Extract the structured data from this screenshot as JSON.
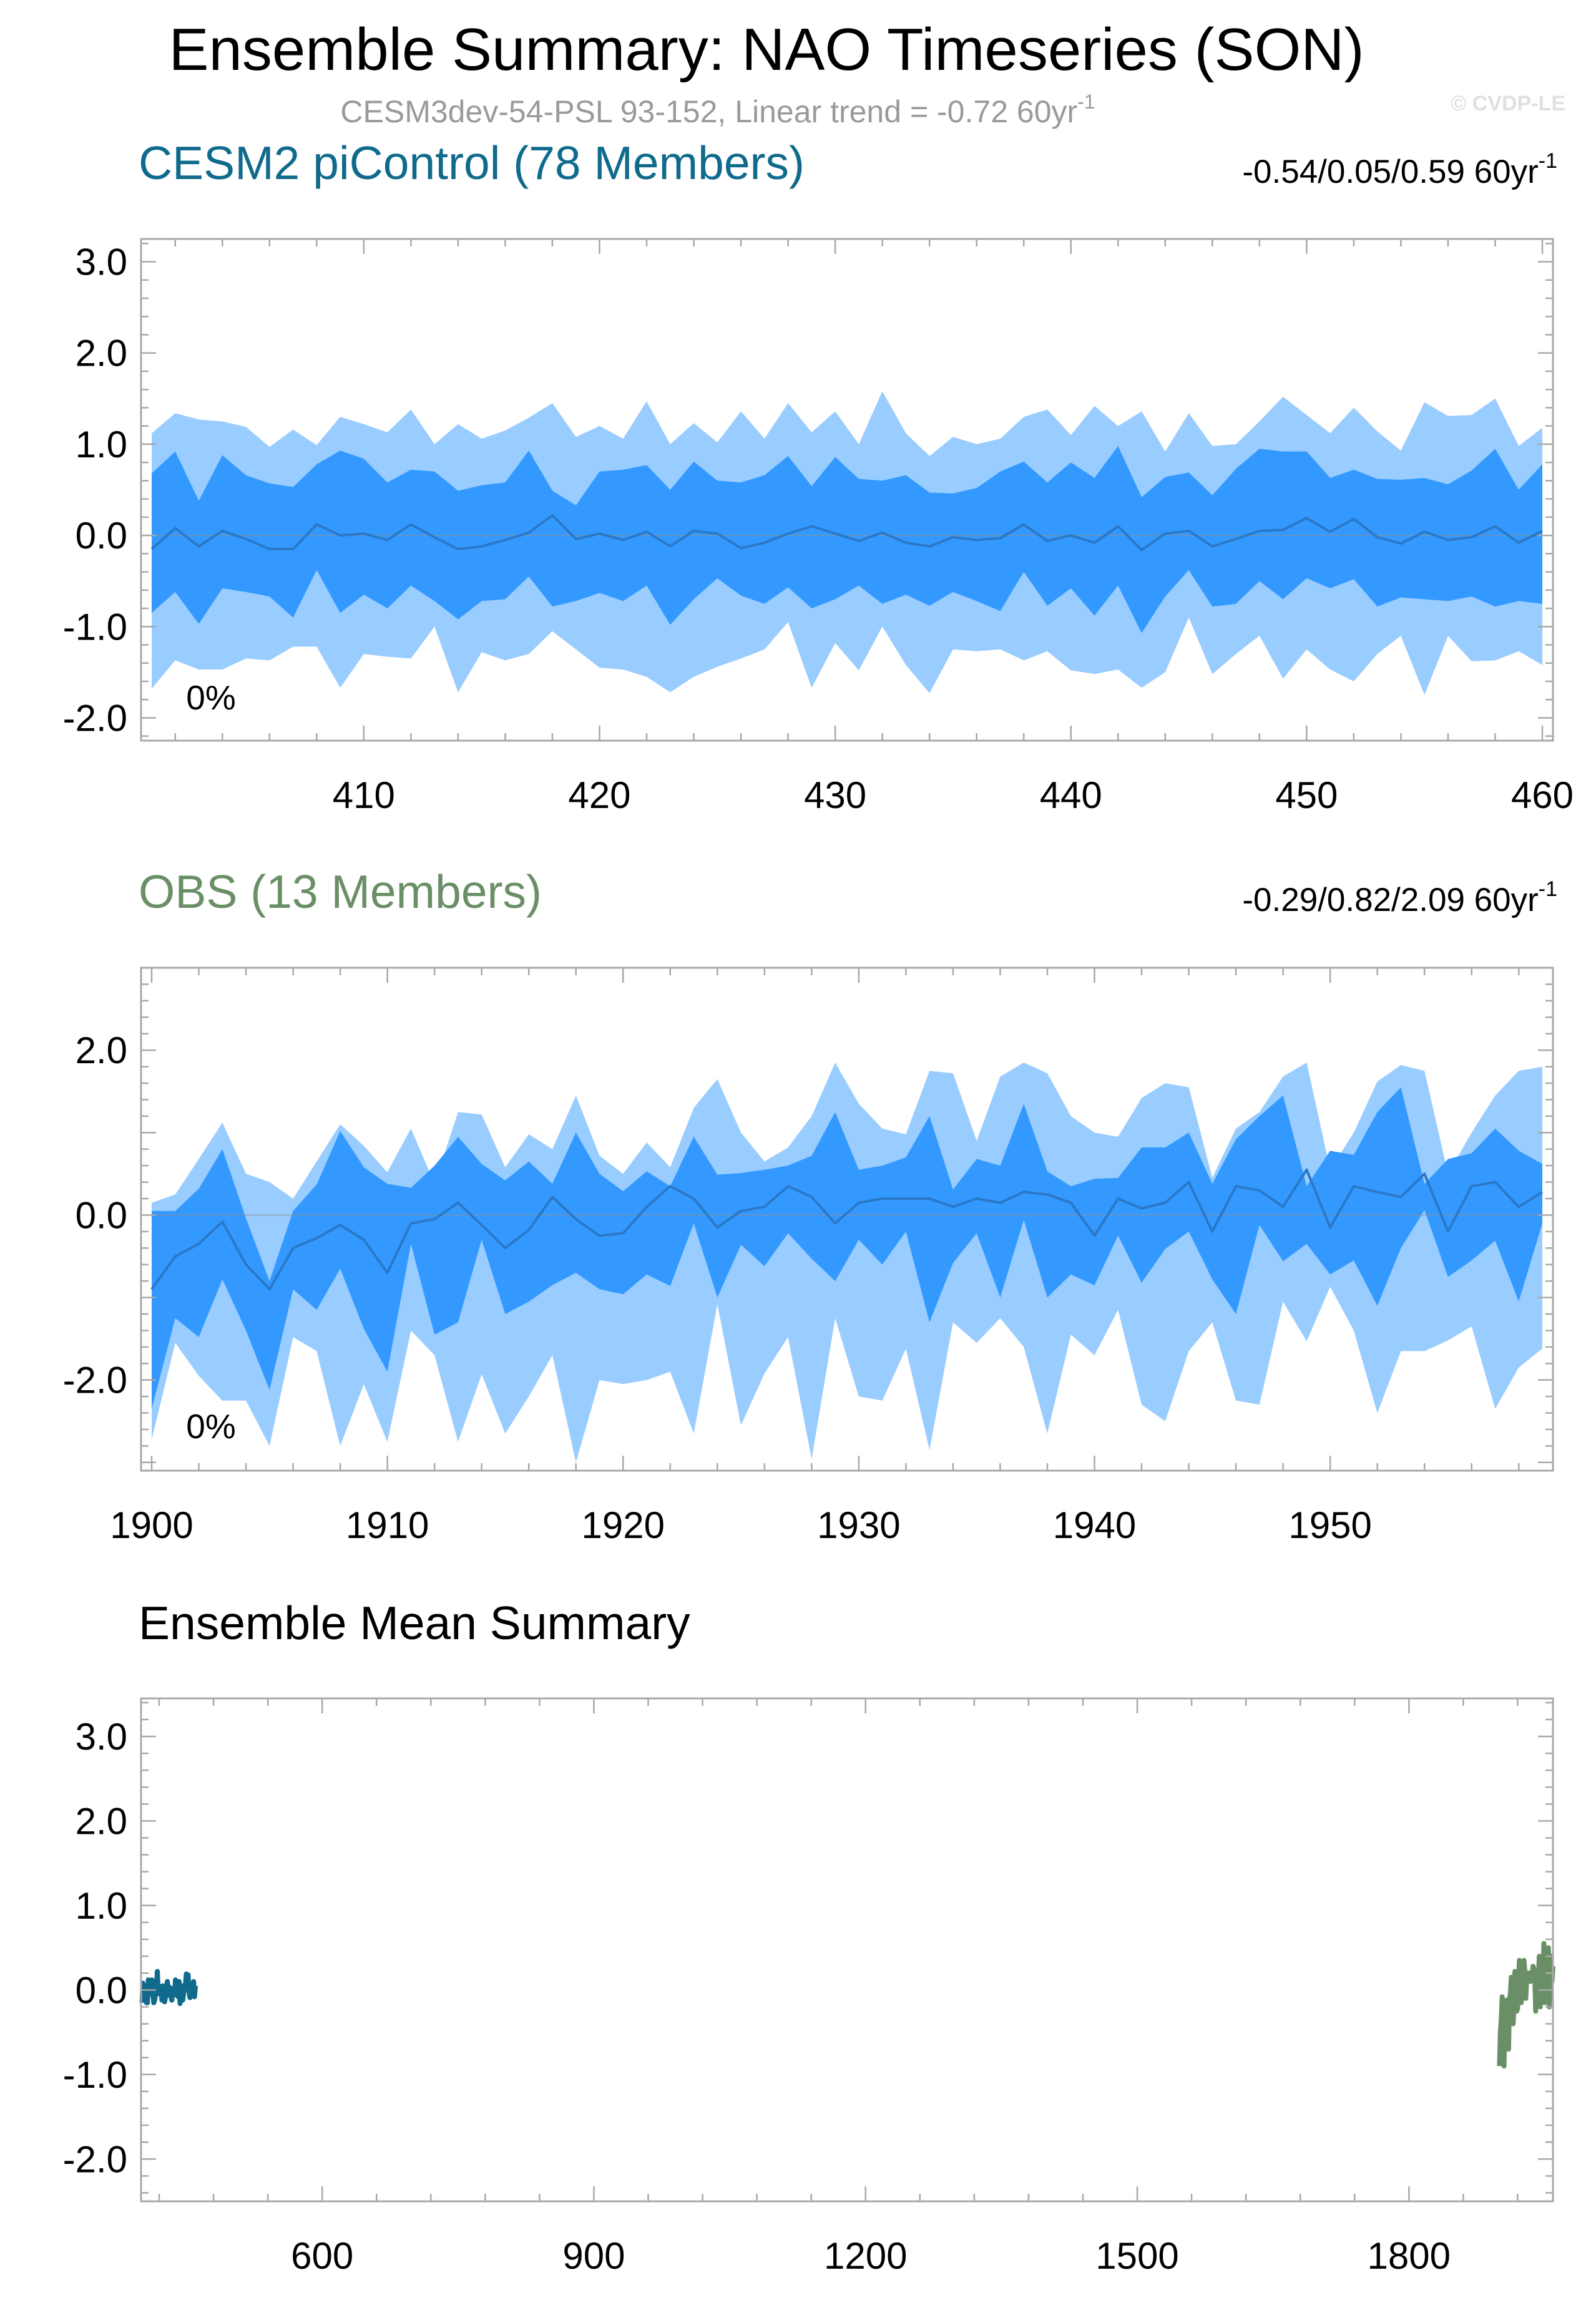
{
  "figure": {
    "title": "Ensemble Summary: NAO Timeseries (SON)",
    "subtitle": "CESM3dev-54-PSL 93-152, Linear trend = -0.72 60yr",
    "subtitle_sup": "-1",
    "credit": "© CVDP-LE",
    "colors": {
      "outer_band": "#99ccff",
      "inner_band": "#3399ff",
      "mean_line": "#2a78c8",
      "cesm_line": "#0f6a8c",
      "obs_line": "#6a8f66",
      "frame": "#a8a8a8"
    }
  },
  "chart_data": [
    {
      "type": "area",
      "id": "cesm2",
      "title": "CESM2 piControl (78 Members)",
      "title_color": "#0f6a8c",
      "trend_label": "-0.54/0.05/0.59 60yr",
      "trend_sup": "-1",
      "percent_label": "0%",
      "xlim": [
        401,
        460
      ],
      "ylim": [
        -2.25,
        3.25
      ],
      "xticks": [
        410,
        420,
        430,
        440,
        450,
        460
      ],
      "xtick_labels": [
        "410",
        "420",
        "430",
        "440",
        "450",
        "460"
      ],
      "yticks": [
        3.0,
        2.0,
        1.0,
        0.0,
        -1.0,
        -2.0
      ],
      "ytick_labels": [
        "3.0",
        "2.0",
        "1.0",
        "0.0",
        "-1.0",
        "-2.0"
      ],
      "x": [
        401,
        402,
        403,
        404,
        405,
        406,
        407,
        408,
        409,
        410,
        411,
        412,
        413,
        414,
        415,
        416,
        417,
        418,
        419,
        420,
        421,
        422,
        423,
        424,
        425,
        426,
        427,
        428,
        429,
        430,
        431,
        432,
        433,
        434,
        435,
        436,
        437,
        438,
        439,
        440,
        441,
        442,
        443,
        444,
        445,
        446,
        447,
        448,
        449,
        450,
        451,
        452,
        453,
        454,
        455,
        456,
        457,
        458,
        459,
        460
      ],
      "series": [
        {
          "name": "max",
          "values": [
            1.12,
            1.34,
            1.27,
            1.25,
            1.19,
            0.97,
            1.16,
            0.99,
            1.3,
            1.22,
            1.13,
            1.38,
            1.0,
            1.22,
            1.06,
            1.15,
            1.29,
            1.45,
            1.08,
            1.2,
            1.06,
            1.47,
            1.0,
            1.23,
            1.02,
            1.36,
            1.06,
            1.45,
            1.13,
            1.36,
            1.0,
            1.58,
            1.12,
            0.87,
            1.08,
            1.0,
            1.06,
            1.3,
            1.38,
            1.1,
            1.42,
            1.2,
            1.36,
            0.92,
            1.34,
            0.98,
            1.0,
            1.25,
            1.52,
            1.32,
            1.12,
            1.4,
            1.14,
            0.93,
            1.46,
            1.31,
            1.32,
            1.5,
            0.98,
            1.18
          ]
        },
        {
          "name": "q75",
          "values": [
            0.68,
            0.92,
            0.38,
            0.88,
            0.66,
            0.57,
            0.53,
            0.78,
            0.93,
            0.84,
            0.58,
            0.72,
            0.7,
            0.49,
            0.55,
            0.58,
            0.93,
            0.49,
            0.33,
            0.7,
            0.72,
            0.77,
            0.5,
            0.81,
            0.6,
            0.58,
            0.66,
            0.87,
            0.54,
            0.86,
            0.62,
            0.6,
            0.66,
            0.47,
            0.46,
            0.52,
            0.7,
            0.81,
            0.58,
            0.8,
            0.63,
            0.98,
            0.42,
            0.64,
            0.69,
            0.44,
            0.73,
            0.95,
            0.92,
            0.92,
            0.63,
            0.72,
            0.62,
            0.61,
            0.63,
            0.56,
            0.71,
            0.95,
            0.5,
            0.78
          ]
        },
        {
          "name": "mean",
          "values": [
            -0.15,
            0.08,
            -0.12,
            0.05,
            -0.04,
            -0.15,
            -0.15,
            0.12,
            0.0,
            0.02,
            -0.05,
            0.12,
            -0.02,
            -0.15,
            -0.12,
            -0.05,
            0.03,
            0.22,
            -0.04,
            0.02,
            -0.05,
            0.04,
            -0.12,
            0.05,
            0.02,
            -0.14,
            -0.08,
            0.02,
            0.1,
            0.02,
            -0.06,
            0.03,
            -0.08,
            -0.12,
            -0.02,
            -0.05,
            -0.03,
            0.12,
            -0.06,
            0.0,
            -0.08,
            0.1,
            -0.16,
            0.02,
            0.05,
            -0.12,
            -0.04,
            0.05,
            0.06,
            0.19,
            0.04,
            0.18,
            -0.02,
            -0.09,
            0.04,
            -0.05,
            -0.02,
            0.1,
            -0.08,
            0.05
          ]
        },
        {
          "name": "q25",
          "values": [
            -0.85,
            -0.62,
            -0.97,
            -0.58,
            -0.62,
            -0.67,
            -0.9,
            -0.38,
            -0.85,
            -0.65,
            -0.8,
            -0.55,
            -0.72,
            -0.92,
            -0.72,
            -0.7,
            -0.45,
            -0.78,
            -0.72,
            -0.63,
            -0.72,
            -0.55,
            -0.98,
            -0.7,
            -0.47,
            -0.66,
            -0.75,
            -0.57,
            -0.8,
            -0.7,
            -0.55,
            -0.75,
            -0.65,
            -0.77,
            -0.62,
            -0.72,
            -0.83,
            -0.4,
            -0.77,
            -0.58,
            -0.88,
            -0.55,
            -1.07,
            -0.67,
            -0.38,
            -0.78,
            -0.75,
            -0.5,
            -0.7,
            -0.47,
            -0.58,
            -0.48,
            -0.78,
            -0.68,
            -0.7,
            -0.72,
            -0.67,
            -0.78,
            -0.72,
            -0.75
          ]
        },
        {
          "name": "min",
          "values": [
            -1.68,
            -1.37,
            -1.47,
            -1.47,
            -1.35,
            -1.37,
            -1.22,
            -1.22,
            -1.67,
            -1.3,
            -1.33,
            -1.35,
            -1.0,
            -1.72,
            -1.28,
            -1.37,
            -1.3,
            -1.05,
            -1.25,
            -1.45,
            -1.47,
            -1.55,
            -1.72,
            -1.55,
            -1.44,
            -1.35,
            -1.25,
            -0.95,
            -1.67,
            -1.18,
            -1.48,
            -1.0,
            -1.42,
            -1.73,
            -1.25,
            -1.27,
            -1.25,
            -1.37,
            -1.27,
            -1.48,
            -1.52,
            -1.47,
            -1.67,
            -1.5,
            -0.9,
            -1.52,
            -1.3,
            -1.1,
            -1.57,
            -1.25,
            -1.47,
            -1.6,
            -1.3,
            -1.1,
            -1.75,
            -1.1,
            -1.38,
            -1.37,
            -1.27,
            -1.42
          ]
        }
      ]
    },
    {
      "type": "area",
      "id": "obs",
      "title": "OBS (13 Members)",
      "title_color": "#6a8f66",
      "trend_label": "-0.29/0.82/2.09 60yr",
      "trend_sup": "-1",
      "percent_label": "0%",
      "xlim": [
        1900,
        1959
      ],
      "ylim": [
        -3.1,
        3.0
      ],
      "xticks": [
        1900,
        1910,
        1920,
        1930,
        1940,
        1950
      ],
      "xtick_labels": [
        "1900",
        "1910",
        "1920",
        "1930",
        "1940",
        "1950"
      ],
      "yticks": [
        2.0,
        0.0,
        -2.0
      ],
      "ytick_labels": [
        "2.0",
        "0.0",
        "-2.0"
      ],
      "x": [
        1900,
        1901,
        1902,
        1903,
        1904,
        1905,
        1906,
        1907,
        1908,
        1909,
        1910,
        1911,
        1912,
        1913,
        1914,
        1915,
        1916,
        1917,
        1918,
        1919,
        1920,
        1921,
        1922,
        1923,
        1924,
        1925,
        1926,
        1927,
        1928,
        1929,
        1930,
        1931,
        1932,
        1933,
        1934,
        1935,
        1936,
        1937,
        1938,
        1939,
        1940,
        1941,
        1942,
        1943,
        1944,
        1945,
        1946,
        1947,
        1948,
        1949,
        1950,
        1951,
        1952,
        1953,
        1954,
        1955,
        1956,
        1957,
        1958,
        1959
      ],
      "series": [
        {
          "name": "max",
          "values": [
            0.15,
            0.25,
            0.68,
            1.12,
            0.5,
            0.4,
            0.2,
            0.65,
            1.1,
            0.84,
            0.52,
            1.05,
            0.38,
            1.25,
            1.22,
            0.58,
            0.98,
            0.8,
            1.45,
            0.72,
            0.5,
            0.88,
            0.58,
            1.3,
            1.65,
            1.0,
            0.65,
            0.82,
            1.2,
            1.85,
            1.35,
            1.05,
            0.98,
            1.75,
            1.72,
            0.9,
            1.68,
            1.85,
            1.72,
            1.2,
            1.0,
            0.95,
            1.42,
            1.6,
            1.55,
            0.45,
            1.05,
            1.25,
            1.68,
            1.85,
            0.55,
            1.0,
            1.62,
            1.82,
            1.75,
            0.5,
            1.0,
            1.45,
            1.75,
            1.8
          ]
        },
        {
          "name": "q75",
          "values": [
            0.05,
            0.05,
            0.32,
            0.8,
            -0.04,
            -0.8,
            0.05,
            0.37,
            1.02,
            0.58,
            0.38,
            0.33,
            0.6,
            0.95,
            0.62,
            0.42,
            0.65,
            0.38,
            1.0,
            0.5,
            0.29,
            0.53,
            0.35,
            0.95,
            0.49,
            0.51,
            0.55,
            0.6,
            0.72,
            1.25,
            0.55,
            0.6,
            0.7,
            1.2,
            0.31,
            0.68,
            0.6,
            1.35,
            0.53,
            0.35,
            0.44,
            0.45,
            0.82,
            0.82,
            1.0,
            0.38,
            0.92,
            1.2,
            1.45,
            0.35,
            0.78,
            0.73,
            1.25,
            1.55,
            0.38,
            0.68,
            0.75,
            1.05,
            0.78,
            0.62
          ]
        },
        {
          "name": "mean",
          "values": [
            -0.9,
            -0.5,
            -0.35,
            -0.08,
            -0.6,
            -0.9,
            -0.4,
            -0.28,
            -0.12,
            -0.3,
            -0.7,
            -0.1,
            -0.05,
            0.15,
            -0.12,
            -0.4,
            -0.18,
            0.22,
            -0.05,
            -0.25,
            -0.22,
            0.1,
            0.35,
            0.2,
            -0.15,
            0.05,
            0.1,
            0.35,
            0.22,
            -0.1,
            0.15,
            0.2,
            0.2,
            0.2,
            0.1,
            0.2,
            0.15,
            0.28,
            0.25,
            0.15,
            -0.25,
            0.2,
            0.08,
            0.15,
            0.4,
            -0.2,
            0.35,
            0.3,
            0.1,
            0.55,
            -0.15,
            0.35,
            0.28,
            0.22,
            0.5,
            -0.2,
            0.35,
            0.4,
            0.1,
            0.28
          ]
        },
        {
          "name": "q25",
          "values": [
            -2.35,
            -1.25,
            -1.48,
            -0.78,
            -1.4,
            -2.12,
            -0.9,
            -1.15,
            -0.65,
            -1.38,
            -1.9,
            -0.35,
            -1.45,
            -1.3,
            -0.3,
            -1.2,
            -1.05,
            -0.85,
            -0.7,
            -0.9,
            -0.96,
            -0.72,
            -0.86,
            -0.1,
            -1.0,
            -0.36,
            -0.62,
            -0.22,
            -0.53,
            -0.8,
            -0.3,
            -0.6,
            -0.2,
            -1.3,
            -0.58,
            -0.22,
            -1.0,
            -0.06,
            -1.0,
            -0.72,
            -0.85,
            -0.25,
            -0.82,
            -0.41,
            -0.2,
            -0.78,
            -1.2,
            -0.12,
            -0.56,
            -0.35,
            -0.72,
            -0.55,
            -1.1,
            -0.4,
            0.06,
            -0.75,
            -0.55,
            -0.31,
            -1.05,
            -0.1
          ]
        },
        {
          "name": "min",
          "values": [
            -2.72,
            -1.55,
            -1.95,
            -2.25,
            -2.25,
            -2.8,
            -1.48,
            -1.65,
            -2.8,
            -2.05,
            -2.75,
            -1.4,
            -1.7,
            -2.75,
            -1.93,
            -2.65,
            -2.2,
            -1.7,
            -3.0,
            -2.0,
            -2.05,
            -2.0,
            -1.9,
            -2.65,
            -1.08,
            -2.55,
            -1.92,
            -1.48,
            -2.96,
            -1.25,
            -2.2,
            -2.25,
            -1.62,
            -2.85,
            -1.3,
            -1.55,
            -1.25,
            -1.6,
            -2.65,
            -1.45,
            -1.7,
            -1.15,
            -2.3,
            -2.5,
            -1.65,
            -1.3,
            -2.25,
            -2.3,
            -1.05,
            -1.53,
            -0.87,
            -1.4,
            -2.4,
            -1.65,
            -1.65,
            -1.52,
            -1.35,
            -2.35,
            -1.85,
            -1.62
          ]
        }
      ]
    },
    {
      "type": "line",
      "id": "ensmean",
      "title": "Ensemble Mean Summary",
      "title_color": "#000000",
      "xlim": [
        400,
        1959
      ],
      "ylim": [
        -2.5,
        3.45
      ],
      "xticks": [
        600,
        900,
        1200,
        1500,
        1800
      ],
      "xtick_labels": [
        "600",
        "900",
        "1200",
        "1500",
        "1800"
      ],
      "yticks": [
        3.0,
        2.0,
        1.0,
        0.0,
        -1.0,
        -2.0
      ],
      "ytick_labels": [
        "3.0",
        "2.0",
        "1.0",
        "0.0",
        "-1.0",
        "-2.0"
      ],
      "series": [
        {
          "name": "CESM2 piControl",
          "color": "#0f6a8c",
          "ref": "cesm2"
        },
        {
          "name": "OBS",
          "color": "#6a8f66",
          "ref": "obs"
        }
      ]
    }
  ]
}
